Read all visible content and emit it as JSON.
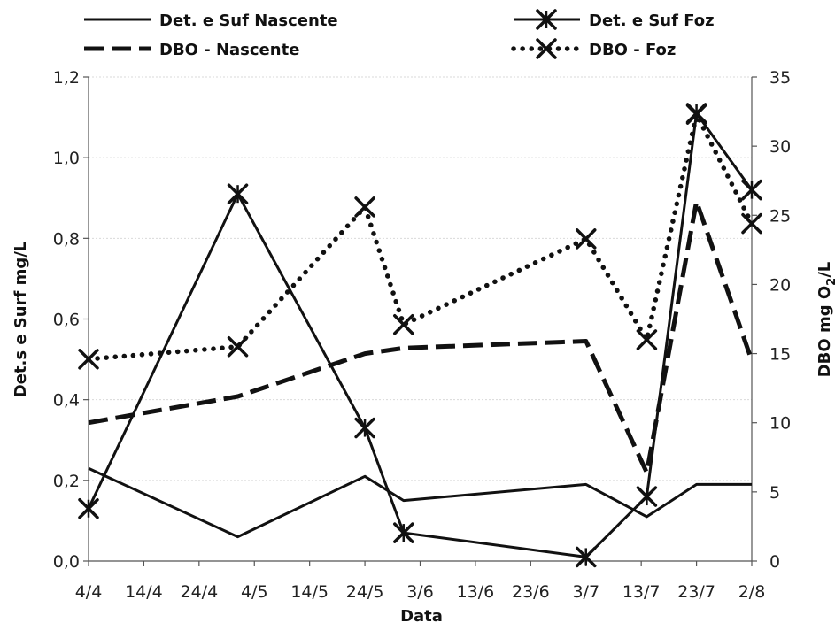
{
  "chart_data": {
    "type": "line",
    "xlabel": "Data",
    "ylabel_left": "Det.s e Surf mg/L",
    "ylabel_right_main": "DBO mg O",
    "ylabel_right_sub": "2",
    "ylabel_right_tail": "/L",
    "x_ticks": [
      "4/4",
      "14/4",
      "24/4",
      "4/5",
      "14/5",
      "24/5",
      "3/6",
      "13/6",
      "23/6",
      "3/7",
      "13/7",
      "23/7",
      "2/8"
    ],
    "ylim_left": [
      0,
      1.2
    ],
    "yticks_left": [
      "0,0",
      "0,2",
      "0,4",
      "0,6",
      "0,8",
      "1,0",
      "1,2"
    ],
    "ylim_right": [
      0,
      35
    ],
    "yticks_right": [
      "0",
      "5",
      "10",
      "15",
      "20",
      "25",
      "30",
      "35"
    ],
    "grid": "horizontal",
    "legend_position": "top",
    "series": [
      {
        "name": "Det. e Suf Nascente",
        "axis": "left",
        "style": "solid",
        "marker": "none",
        "x": [
          "4/4",
          "1/5",
          "24/5",
          "31/5",
          "3/7",
          "14/7",
          "23/7",
          "2/8"
        ],
        "y": [
          0.23,
          0.06,
          0.21,
          0.15,
          0.19,
          0.11,
          0.19,
          0.19
        ]
      },
      {
        "name": "Det. e Suf Foz",
        "axis": "left",
        "style": "solid",
        "marker": "asterisk",
        "x": [
          "4/4",
          "1/5",
          "24/5",
          "31/5",
          "3/7",
          "14/7",
          "23/7",
          "2/8"
        ],
        "y": [
          0.13,
          0.91,
          0.33,
          0.07,
          0.01,
          0.16,
          1.11,
          0.92
        ]
      },
      {
        "name": "DBO - Nascente",
        "axis": "right",
        "style": "dashed",
        "marker": "none",
        "x": [
          "4/4",
          "1/5",
          "24/5",
          "31/5",
          "3/7",
          "14/7",
          "23/7",
          "2/8"
        ],
        "y": [
          10.0,
          11.9,
          15.0,
          15.4,
          15.9,
          6.4,
          26.0,
          14.5
        ]
      },
      {
        "name": "DBO - Foz",
        "axis": "right",
        "style": "dotted",
        "marker": "x",
        "x": [
          "4/4",
          "1/5",
          "24/5",
          "31/5",
          "3/7",
          "14/7",
          "23/7",
          "2/8"
        ],
        "y": [
          14.6,
          15.5,
          25.6,
          17.1,
          23.3,
          16.0,
          32.3,
          24.4
        ]
      }
    ]
  }
}
